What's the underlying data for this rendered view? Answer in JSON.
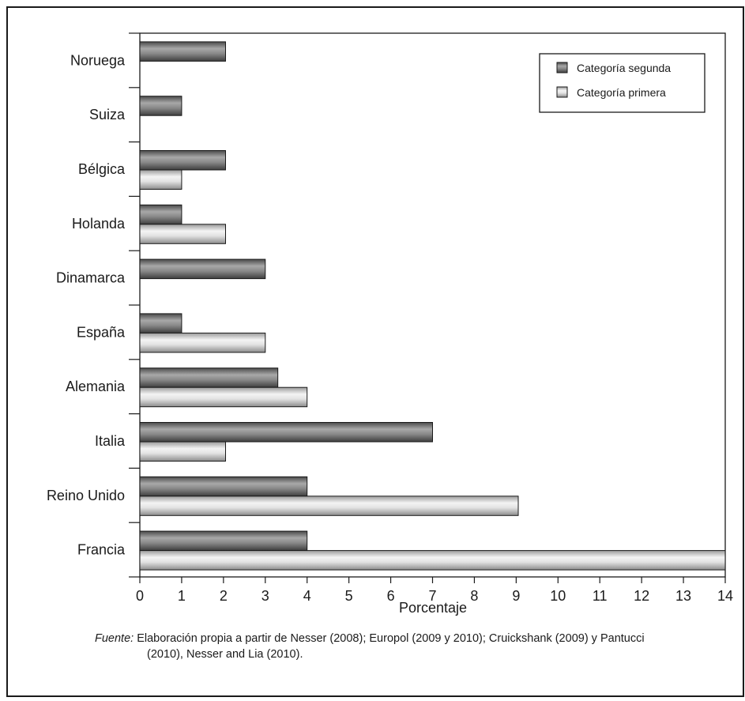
{
  "chart_data": {
    "type": "bar",
    "orientation": "horizontal",
    "categories": [
      "Noruega",
      "Suiza",
      "Bélgica",
      "Holanda",
      "Dinamarca",
      "España",
      "Alemania",
      "Italia",
      "Reino Unido",
      "Francia"
    ],
    "series": [
      {
        "name": "Categoría segunda",
        "values": [
          2.05,
          1.0,
          2.05,
          1.0,
          3.0,
          1.0,
          3.3,
          7.0,
          4.0,
          4.0
        ],
        "color": "#6b6b6b"
      },
      {
        "name": "Categoría primera",
        "values": [
          0,
          0,
          1.0,
          2.05,
          0,
          3.0,
          4.0,
          2.05,
          9.05,
          14.0
        ],
        "color": "#d6d6d6"
      }
    ],
    "x_ticks": [
      "0",
      "1",
      "2",
      "3",
      "4",
      "5",
      "6",
      "7",
      "8",
      "9",
      "10",
      "11",
      "12",
      "13",
      "14"
    ],
    "xlim": [
      0,
      14
    ],
    "xlabel": "Porcentaje",
    "legend_position": "top-right",
    "grid": false
  },
  "source": {
    "label": "Fuente:",
    "line1": " Elaboración propia a partir de Nesser (2008); Europol (2009 y 2010); Cruickshank (2009) y Pantucci",
    "line2": "(2010), Nesser and Lia (2010)."
  }
}
